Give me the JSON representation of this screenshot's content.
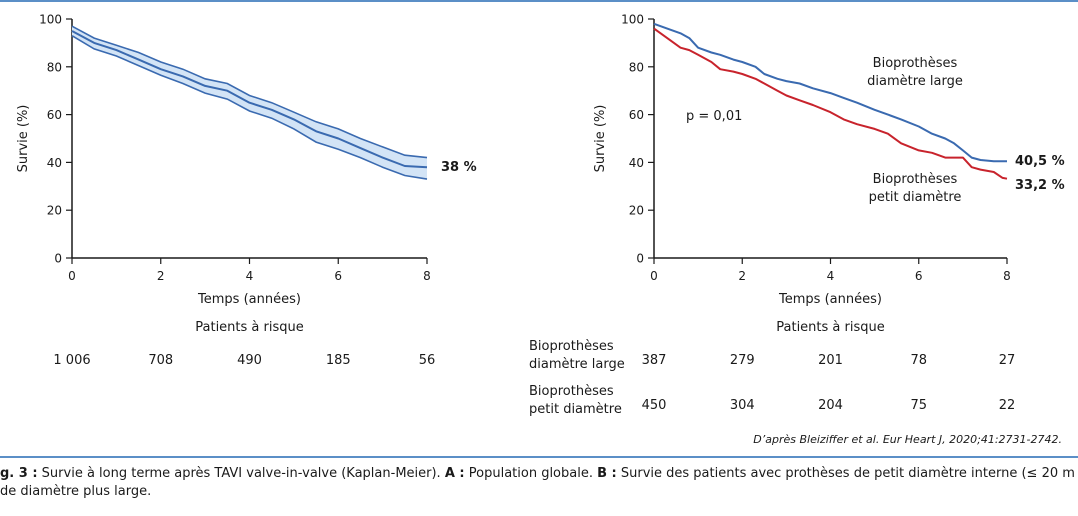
{
  "chart_data": [
    {
      "type": "line",
      "panel": "A",
      "xlabel": "Temps (années)",
      "ylabel": "Survie (%)",
      "xlim": [
        0,
        8
      ],
      "ylim": [
        0,
        100
      ],
      "xticks": [
        0,
        2,
        4,
        6,
        8
      ],
      "yticks": [
        0,
        20,
        40,
        60,
        80,
        100
      ],
      "series": [
        {
          "color": "#3a6ab0",
          "x": [
            0,
            0.5,
            1,
            1.5,
            2,
            2.5,
            3,
            3.5,
            4,
            4.5,
            5,
            5.5,
            6,
            6.5,
            7,
            7.5,
            8
          ],
          "y": [
            95,
            90,
            87,
            83,
            79,
            76,
            72,
            70,
            65,
            62,
            58,
            53,
            50,
            46,
            42,
            38.5,
            38
          ]
        }
      ],
      "ci_upper": [
        97,
        92,
        89,
        86,
        82,
        79,
        75,
        73,
        68,
        65,
        61,
        57,
        54,
        50,
        46.5,
        43,
        42
      ],
      "ci_lower": [
        93,
        87.5,
        84.5,
        80.5,
        76.5,
        73,
        69,
        66.5,
        61.5,
        58.5,
        54,
        48.5,
        45.5,
        42,
        38,
        34.5,
        33
      ],
      "end_label": "38 %",
      "risk_table": {
        "title": "Patients à risque",
        "rows": [
          {
            "label": "",
            "values": [
              "1 006",
              "708",
              "490",
              "185",
              "56"
            ]
          }
        ]
      }
    },
    {
      "type": "line",
      "panel": "B",
      "xlabel": "Temps (années)",
      "ylabel": "Survie (%)",
      "xlim": [
        0,
        8
      ],
      "ylim": [
        0,
        100
      ],
      "xticks": [
        0,
        2,
        4,
        6,
        8
      ],
      "yticks": [
        0,
        20,
        40,
        60,
        80,
        100
      ],
      "annotation": "p = 0,01",
      "series": [
        {
          "name": "Bioprothèses diamètre large",
          "color": "#3a6ab0",
          "end_label": "40,5 %",
          "x": [
            0,
            0.3,
            0.6,
            0.8,
            1,
            1.3,
            1.5,
            1.8,
            2,
            2.3,
            2.5,
            2.8,
            3,
            3.3,
            3.6,
            4,
            4.3,
            4.6,
            5,
            5.3,
            5.6,
            6,
            6.3,
            6.6,
            6.8,
            7,
            7.2,
            7.4,
            7.7,
            8
          ],
          "y": [
            98,
            96,
            94,
            92,
            88,
            86,
            85,
            83,
            82,
            80,
            77,
            75,
            74,
            73,
            71,
            69,
            67,
            65,
            62,
            60,
            58,
            55,
            52,
            50,
            48,
            45,
            42,
            41,
            40.5,
            40.5
          ]
        },
        {
          "name": "Bioprothèses petit diamètre",
          "color": "#c8232c",
          "end_label": "33,2 %",
          "x": [
            0,
            0.3,
            0.6,
            0.8,
            1,
            1.3,
            1.5,
            1.8,
            2,
            2.3,
            2.5,
            2.8,
            3,
            3.3,
            3.6,
            4,
            4.3,
            4.6,
            5,
            5.3,
            5.6,
            6,
            6.3,
            6.6,
            7,
            7.2,
            7.4,
            7.7,
            7.9,
            8
          ],
          "y": [
            96,
            92,
            88,
            87,
            85,
            82,
            79,
            78,
            77,
            75,
            73,
            70,
            68,
            66,
            64,
            61,
            58,
            56,
            54,
            52,
            48,
            45,
            44,
            42,
            42,
            38,
            37,
            36,
            33.5,
            33.2
          ]
        }
      ],
      "risk_table": {
        "title": "Patients à risque",
        "rows": [
          {
            "label": [
              "Bioprothèses",
              "diamètre large"
            ],
            "values": [
              "387",
              "279",
              "201",
              "78",
              "27"
            ]
          },
          {
            "label": [
              "Bioprothèses",
              "petit diamètre"
            ],
            "values": [
              "450",
              "304",
              "204",
              "75",
              "22"
            ]
          }
        ]
      }
    }
  ],
  "source": "D’après Bleiziffer et al. Eur Heart J, 2020;41:2731-2742.",
  "caption": {
    "prefix": "g. 3 :",
    "intro": " Survie à long terme après TAVI valve-in-valve (Kaplan-Meier). ",
    "a_label": "A :",
    "a_text": " Population globale. ",
    "b_label": "B :",
    "b_text": " Survie des patients avec prothèses de petit diamètre interne (≤ 20 m",
    "line2": "de diamètre plus large."
  }
}
